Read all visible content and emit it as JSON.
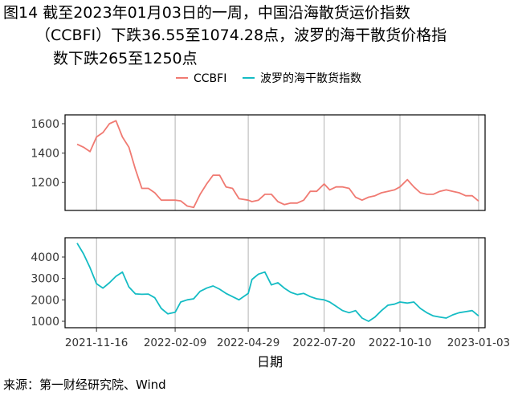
{
  "title": {
    "line1": "图14  截至2023年01月03日的一周，中国沿海散货运价指数",
    "line2": "（CCBFI）下跌36.55至1074.28点，波罗的海干散货价格指",
    "line3": "数下跌265至1250点"
  },
  "source": "来源：第一财经研究院、Wind",
  "colors": {
    "ccbfi": "#f07a72",
    "bdi": "#14bcc4",
    "grid": "#b3b3b3"
  },
  "chart_data": {
    "type": "line",
    "xlabel": "日期",
    "x_tick_labels": [
      "2021-11-16",
      "2022-02-09",
      "2022-04-29",
      "2022-07-20",
      "2022-10-10",
      "2023-01-03"
    ],
    "legend": {
      "placement": "top",
      "items": [
        "CCBFI",
        "波罗的海干散货指数"
      ]
    },
    "panels": [
      {
        "series_name": "CCBFI",
        "ylim": [
          1010,
          1660
        ],
        "y_ticks": [
          1200,
          1400,
          1600
        ],
        "x": [
          "2021-10-26",
          "2021-11-02",
          "2021-11-09",
          "2021-11-16",
          "2021-11-23",
          "2021-11-30",
          "2021-12-07",
          "2021-12-14",
          "2021-12-21",
          "2021-12-28",
          "2022-01-04",
          "2022-01-11",
          "2022-01-18",
          "2022-01-25",
          "2022-02-01",
          "2022-02-09",
          "2022-02-15",
          "2022-02-22",
          "2022-03-01",
          "2022-03-08",
          "2022-03-15",
          "2022-03-22",
          "2022-03-29",
          "2022-04-05",
          "2022-04-12",
          "2022-04-19",
          "2022-04-29",
          "2022-05-03",
          "2022-05-10",
          "2022-05-17",
          "2022-05-24",
          "2022-05-31",
          "2022-06-07",
          "2022-06-14",
          "2022-06-21",
          "2022-06-28",
          "2022-07-05",
          "2022-07-12",
          "2022-07-20",
          "2022-07-26",
          "2022-08-02",
          "2022-08-09",
          "2022-08-16",
          "2022-08-23",
          "2022-08-30",
          "2022-09-06",
          "2022-09-13",
          "2022-09-20",
          "2022-09-27",
          "2022-10-04",
          "2022-10-10",
          "2022-10-18",
          "2022-10-25",
          "2022-11-01",
          "2022-11-08",
          "2022-11-15",
          "2022-11-22",
          "2022-11-29",
          "2022-12-06",
          "2022-12-13",
          "2022-12-20",
          "2022-12-27",
          "2023-01-03"
        ],
        "y": [
          1460,
          1440,
          1410,
          1510,
          1540,
          1600,
          1620,
          1510,
          1440,
          1290,
          1160,
          1160,
          1130,
          1080,
          1080,
          1080,
          1075,
          1040,
          1030,
          1120,
          1190,
          1250,
          1250,
          1170,
          1160,
          1090,
          1080,
          1070,
          1080,
          1120,
          1120,
          1070,
          1050,
          1060,
          1060,
          1080,
          1140,
          1140,
          1190,
          1150,
          1170,
          1170,
          1160,
          1100,
          1080,
          1100,
          1110,
          1130,
          1140,
          1150,
          1170,
          1220,
          1170,
          1130,
          1120,
          1120,
          1140,
          1150,
          1140,
          1130,
          1110,
          1110,
          1074
        ]
      },
      {
        "series_name": "波罗的海干散货指数",
        "ylim": [
          700,
          4900
        ],
        "y_ticks": [
          1000,
          2000,
          3000,
          4000
        ],
        "x": [
          "2021-10-26",
          "2021-11-02",
          "2021-11-09",
          "2021-11-16",
          "2021-11-23",
          "2021-11-30",
          "2021-12-07",
          "2021-12-14",
          "2021-12-21",
          "2021-12-28",
          "2022-01-04",
          "2022-01-11",
          "2022-01-18",
          "2022-01-25",
          "2022-02-01",
          "2022-02-09",
          "2022-02-15",
          "2022-02-22",
          "2022-03-01",
          "2022-03-08",
          "2022-03-15",
          "2022-03-22",
          "2022-03-29",
          "2022-04-05",
          "2022-04-12",
          "2022-04-19",
          "2022-04-29",
          "2022-05-03",
          "2022-05-10",
          "2022-05-17",
          "2022-05-24",
          "2022-05-31",
          "2022-06-07",
          "2022-06-14",
          "2022-06-21",
          "2022-06-28",
          "2022-07-05",
          "2022-07-12",
          "2022-07-20",
          "2022-07-26",
          "2022-08-02",
          "2022-08-09",
          "2022-08-16",
          "2022-08-23",
          "2022-08-30",
          "2022-09-06",
          "2022-09-13",
          "2022-09-20",
          "2022-09-27",
          "2022-10-04",
          "2022-10-10",
          "2022-10-18",
          "2022-10-25",
          "2022-11-01",
          "2022-11-08",
          "2022-11-15",
          "2022-11-22",
          "2022-11-29",
          "2022-12-06",
          "2022-12-13",
          "2022-12-20",
          "2022-12-27",
          "2023-01-03"
        ],
        "y": [
          4650,
          4150,
          3500,
          2750,
          2550,
          2800,
          3100,
          3300,
          2600,
          2280,
          2260,
          2270,
          2100,
          1600,
          1350,
          1420,
          1900,
          2000,
          2050,
          2400,
          2550,
          2650,
          2500,
          2300,
          2150,
          2000,
          2300,
          2950,
          3200,
          3300,
          2700,
          2800,
          2550,
          2350,
          2250,
          2300,
          2150,
          2050,
          2000,
          1900,
          1700,
          1500,
          1400,
          1500,
          1150,
          1000,
          1200,
          1500,
          1750,
          1800,
          1900,
          1850,
          1900,
          1600,
          1400,
          1250,
          1200,
          1150,
          1300,
          1400,
          1450,
          1500,
          1250
        ]
      }
    ]
  }
}
